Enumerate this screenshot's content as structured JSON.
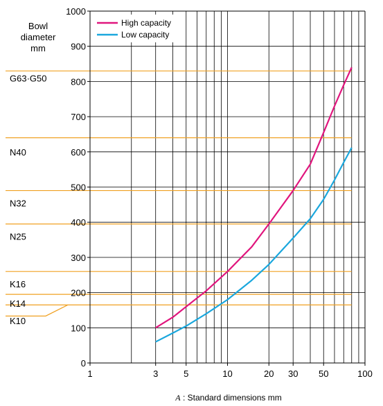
{
  "chart_data": {
    "type": "line",
    "y_axis": {
      "label_lines": [
        "Bowl",
        "diameter",
        "mm"
      ],
      "ylim": [
        0,
        1000
      ],
      "ticks": [
        0,
        100,
        200,
        300,
        400,
        500,
        600,
        700,
        800,
        900,
        1000
      ],
      "tick_labels": [
        "0",
        "100",
        "200",
        "300",
        "400",
        "500",
        "600",
        "700",
        "800",
        "900",
        "1000"
      ]
    },
    "x_axis": {
      "scale": "log",
      "xlim": [
        1,
        100
      ],
      "ticks": [
        1,
        3,
        5,
        10,
        20,
        30,
        50,
        100
      ],
      "tick_labels": [
        "1",
        "3",
        "5",
        "10",
        "20",
        "30",
        "50",
        "100"
      ],
      "minor_gridlines": [
        2,
        3,
        4,
        5,
        6,
        7,
        8,
        9,
        10,
        20,
        30,
        40,
        50,
        60,
        70,
        80,
        90
      ],
      "label_symbol": "A",
      "label_rest": " : Standard dimensions  mm"
    },
    "grid": true,
    "legend_position": "top-left",
    "series": [
      {
        "name": "High capacity",
        "color": "#e0157d",
        "points": [
          [
            3,
            100
          ],
          [
            4,
            130
          ],
          [
            5,
            160
          ],
          [
            7,
            205
          ],
          [
            10,
            260
          ],
          [
            15,
            330
          ],
          [
            20,
            395
          ],
          [
            30,
            490
          ],
          [
            40,
            565
          ],
          [
            50,
            655
          ],
          [
            60,
            730
          ],
          [
            70,
            790
          ],
          [
            80,
            840
          ]
        ]
      },
      {
        "name": "Low capacity",
        "color": "#1aa7dd",
        "points": [
          [
            3,
            60
          ],
          [
            4,
            85
          ],
          [
            5,
            105
          ],
          [
            7,
            140
          ],
          [
            10,
            180
          ],
          [
            15,
            235
          ],
          [
            20,
            280
          ],
          [
            30,
            355
          ],
          [
            40,
            410
          ],
          [
            50,
            465
          ],
          [
            60,
            520
          ],
          [
            70,
            570
          ],
          [
            80,
            612
          ]
        ]
      }
    ],
    "model_thresholds": {
      "color": "#f0a020",
      "labels": [
        {
          "label": "G63·G50",
          "value": 810
        },
        {
          "label": "N40",
          "value": 600
        },
        {
          "label": "N32",
          "value": 455
        },
        {
          "label": "N25",
          "value": 360
        },
        {
          "label": "K16",
          "value": 225
        },
        {
          "label": "K14",
          "value": 170
        },
        {
          "label": "K10",
          "value": 120
        }
      ],
      "lines": [
        {
          "y": 830,
          "x_from": 1,
          "x_to": 80
        },
        {
          "y": 640,
          "x_from": 1,
          "x_to": 80
        },
        {
          "y": 490,
          "x_from": 1,
          "x_to": 80
        },
        {
          "y": 395,
          "x_from": 1,
          "x_to": 80
        },
        {
          "y": 260,
          "x_from": 1,
          "x_to": 80
        },
        {
          "y": 195,
          "x_from": 1,
          "x_to": 80
        },
        {
          "y": 165,
          "x_from": 1,
          "x_to": 80
        }
      ]
    }
  }
}
